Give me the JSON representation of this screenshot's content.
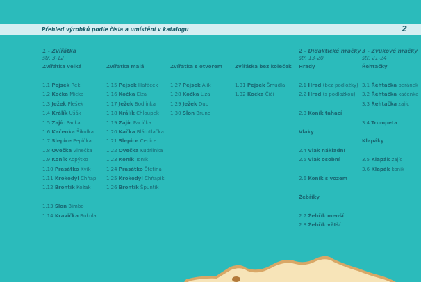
{
  "header": {
    "title": "Přehled výrobků podle čísla a umístění v katalogu",
    "page_number": "2"
  },
  "sections": [
    {
      "title": "1 - Zvířátka",
      "pages": "str. 3-12",
      "columns": [
        {
          "heading": "Zvířátka velká",
          "items": [
            [
              "1.1",
              "Pejsek",
              "Rek"
            ],
            [
              "1.2",
              "Kočka",
              "Micka"
            ],
            [
              "1.3",
              "Ježek",
              "Plešek"
            ],
            [
              "1.4",
              "Králík",
              "Ušák"
            ],
            [
              "1.5",
              "Zajíc",
              "Packa"
            ],
            [
              "1.6",
              "Kačenka",
              "Šikulka"
            ],
            [
              "1.7",
              "Slepice",
              "Pepička"
            ],
            [
              "1.8",
              "Ovečka",
              "Vinečka"
            ],
            [
              "1.9",
              "Koník",
              "Kopýtko"
            ],
            [
              "1.10",
              "Prasátko",
              "Kvik"
            ],
            [
              "1.11",
              "Krokodýl",
              "Chňap"
            ],
            [
              "1.12",
              "Brontík",
              "Kožak"
            ],
            [
              "1.13",
              "Slon",
              "Bimbo"
            ],
            [
              "1.14",
              "Kravička",
              "Bukola"
            ]
          ]
        },
        {
          "heading": "Zvířátka malá",
          "items": [
            [
              "1.15",
              "Pejsek",
              "Hafáček"
            ],
            [
              "1.16",
              "Kočka",
              "Elza"
            ],
            [
              "1.17",
              "Ježek",
              "Bodlinka"
            ],
            [
              "1.18",
              "Králík",
              "Chloupek"
            ],
            [
              "1.19",
              "Zajíc",
              "Pacička"
            ],
            [
              "1.20",
              "Kačka",
              "Blátotlačka"
            ],
            [
              "1.21",
              "Slepice",
              "Čepice"
            ],
            [
              "1.22",
              "Ovečka",
              "Kudrlinka"
            ],
            [
              "1.23",
              "Koník",
              "Toník"
            ],
            [
              "1.24",
              "Prasátko",
              "Štětina"
            ],
            [
              "1.25",
              "Krokodýl",
              "Chňapík"
            ],
            [
              "1.26",
              "Brontík",
              "Špuntík"
            ]
          ]
        },
        {
          "heading": "Zvířátka s otvorem",
          "items": [
            [
              "1.27",
              "Pejsek",
              "Alík"
            ],
            [
              "1.28",
              "Kočka",
              "Líza"
            ],
            [
              "1.29",
              "Ježek",
              "Dup"
            ],
            [
              "1.30",
              "Slon",
              "Bruno"
            ]
          ]
        },
        {
          "heading": "Zvířátka bez koleček",
          "items": [
            [
              "1.31",
              "Pejsek",
              "Šmudla"
            ],
            [
              "1.32",
              "Kočka",
              "Čiči"
            ]
          ]
        }
      ]
    },
    {
      "title": "2 - Didaktické hračky",
      "pages": "str. 13-20",
      "columns": [
        {
          "heading": "Hrady",
          "items": [
            [
              "2.1",
              "Hrad",
              "(bez podložky)"
            ],
            [
              "2.2",
              "Hrad",
              "(s podložkou)"
            ],
            [
              "2.3",
              "Koník tahací",
              ""
            ],
            {
              "heading": "Vlaky"
            },
            [
              "2.4",
              "Vlak nákladní",
              ""
            ],
            [
              "2.5",
              "Vlak osobní",
              ""
            ],
            [
              "2.6",
              "Koník s vozem",
              ""
            ],
            {
              "heading": "Žebříky"
            },
            [
              "2.7",
              "Žebřík menší",
              ""
            ],
            [
              "2.8",
              "Žebřík větší",
              ""
            ]
          ]
        }
      ]
    },
    {
      "title": "3 - Zvukové hračky",
      "pages": "str. 21-24",
      "columns": [
        {
          "heading": "Řehtačky",
          "items": [
            [
              "3.1",
              "Řehtačka",
              "beránek"
            ],
            [
              "3.2",
              "Řehtačka",
              "kačenka"
            ],
            [
              "3.3",
              "Řehtačka",
              "zajíc"
            ],
            [
              "3.4",
              "Trumpeta",
              ""
            ],
            {
              "heading": "Klapáky"
            },
            [
              "3.5",
              "Klapák",
              "zajíc"
            ],
            [
              "3.6",
              "Klapák",
              "koník"
            ]
          ]
        }
      ]
    }
  ],
  "colors": {
    "background": "#2bbbbb",
    "band": "#d5eef2",
    "text": "#1a6873",
    "wood": "#f7e4b8"
  }
}
